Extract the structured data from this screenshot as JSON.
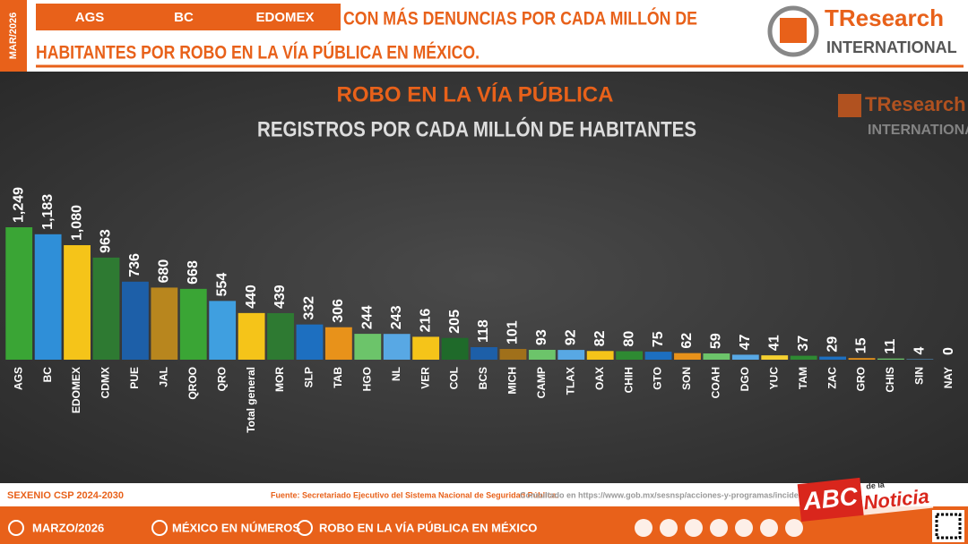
{
  "header": {
    "side_label": "MAR/2026",
    "highlights": [
      "AGS",
      "BC",
      "EDOMEX"
    ],
    "title_line1": "CON MÁS DENUNCIAS POR CADA MILLÓN DE",
    "title_line2": "HABITANTES POR ROBO EN LA VÍA PÚBLICA EN MÉXICO.",
    "logo_main": "TResearch",
    "logo_sub": "INTERNATIONAL"
  },
  "chart_data": {
    "type": "bar",
    "title": "ROBO EN LA VÍA PÚBLICA",
    "subtitle": "REGISTROS POR CADA MILLÓN DE HABITANTES",
    "categories": [
      "AGS",
      "BC",
      "EDOMEX",
      "CDMX",
      "PUE",
      "JAL",
      "QROO",
      "QRO",
      "Total general",
      "MOR",
      "SLP",
      "TAB",
      "HGO",
      "NL",
      "VER",
      "COL",
      "BCS",
      "MICH",
      "CAMP",
      "TLAX",
      "OAX",
      "CHIH",
      "GTO",
      "SON",
      "COAH",
      "DGO",
      "YUC",
      "TAM",
      "ZAC",
      "GRO",
      "CHIS",
      "SIN",
      "NAY"
    ],
    "values": [
      1249,
      1183,
      1080,
      963,
      736,
      680,
      668,
      554,
      440,
      439,
      332,
      306,
      244,
      243,
      216,
      205,
      118,
      101,
      93,
      92,
      82,
      80,
      75,
      62,
      59,
      47,
      41,
      37,
      29,
      15,
      11,
      4,
      0
    ],
    "value_labels": [
      "1,249",
      "1,183",
      "1,080",
      "963",
      "736",
      "680",
      "668",
      "554",
      "440",
      "439",
      "332",
      "306",
      "244",
      "243",
      "216",
      "205",
      "118",
      "101",
      "93",
      "92",
      "82",
      "80",
      "75",
      "62",
      "59",
      "47",
      "41",
      "37",
      "29",
      "15",
      "11",
      "4",
      "0"
    ],
    "colors": [
      "#3aa535",
      "#2f8fd8",
      "#f5c419",
      "#2e7a32",
      "#1d5fa8",
      "#b8861e",
      "#3aa535",
      "#3f9fe0",
      "#f5c419",
      "#2e7a32",
      "#1d6fc0",
      "#e8921a",
      "#6cc46a",
      "#58a8e4",
      "#f5c419",
      "#1f6a2a",
      "#1d5fa8",
      "#a0701a",
      "#6cc46a",
      "#58a8e4",
      "#f5c419",
      "#2e8a32",
      "#1d6fc0",
      "#e8921a",
      "#6cc46a",
      "#58a8e4",
      "#f5d030",
      "#2e8a32",
      "#1d6fc0",
      "#e8921a",
      "#6cc46a",
      "#58a8e4",
      "#3aa535"
    ]
  },
  "footer": {
    "left": "SEXENIO CSP 2024-2030",
    "source": "Fuente: Secretariado Ejecutivo del Sistema Nacional de Seguridad Pública.",
    "consulted": "Consultado en https://www.gob.mx/sesnsp/acciones-y-programas/incidencia-del",
    "items": [
      "MARZO/2026",
      "MÉXICO EN NÚMEROS",
      "ROBO EN LA VÍA PÚBLICA EN MÉXICO"
    ],
    "watermark_main": "ABC",
    "watermark_small": "de la",
    "watermark_sub": "Noticia"
  }
}
